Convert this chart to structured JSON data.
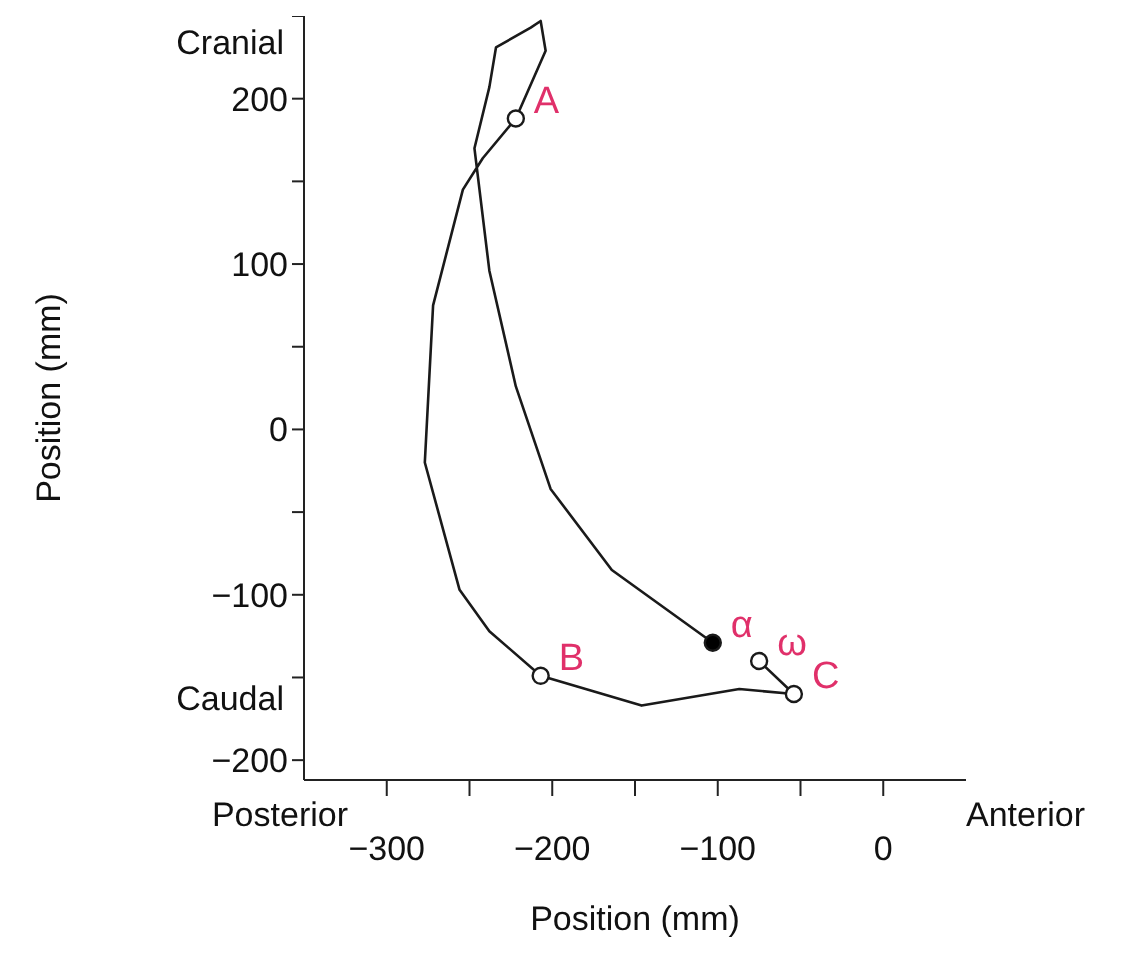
{
  "chart_data": {
    "type": "line",
    "xlabel": "Position (mm)",
    "ylabel": "Position (mm)",
    "xlim": [
      -350,
      50
    ],
    "ylim": [
      -212,
      250
    ],
    "xticks": [
      -300,
      {
        "value": -250,
        "label": null
      },
      -200,
      {
        "value": -150,
        "label": null
      },
      -100,
      {
        "value": -50,
        "label": null
      },
      0
    ],
    "yticks": [
      -200,
      {
        "value": -150,
        "label": null
      },
      -100,
      {
        "value": -50,
        "label": null
      },
      0,
      {
        "value": 50,
        "label": null
      },
      100,
      {
        "value": 150,
        "label": null
      },
      200,
      {
        "value": 250,
        "label": null
      }
    ],
    "grid": false,
    "series": [
      {
        "color": "#1a1a1a",
        "marker": "none",
        "x": [
          -103,
          -164,
          -201,
          -222,
          -238,
          -247,
          -238,
          -234,
          -213,
          -207,
          -204,
          -222,
          -242,
          -254,
          -272,
          -277,
          -256,
          -238,
          -207,
          -146,
          -87,
          -54,
          -75
        ],
        "values": [
          -129,
          -85,
          -36,
          26,
          96,
          170,
          207,
          231,
          243,
          247,
          229,
          188,
          164,
          145,
          75,
          -20,
          -97,
          -122,
          -149,
          -167,
          -157,
          -160,
          -140
        ]
      },
      {
        "type": "scatter",
        "color": "#1a1a1a",
        "marker": "circle",
        "x": [
          -222,
          -207,
          -54,
          -75
        ],
        "values": [
          188,
          -149,
          -160,
          -140
        ]
      },
      {
        "type": "scatter",
        "color": "#1a1a1a",
        "colors": [
          "#000000"
        ],
        "marker": "circle",
        "x": [
          -103
        ],
        "values": [
          -129
        ]
      }
    ],
    "annotations": [
      "Cranial",
      "Caudal",
      "Posterior",
      "Anterior",
      {
        "text": "A",
        "x": -222,
        "y": 188
      },
      {
        "text": "B",
        "x": -207,
        "y": -149
      },
      {
        "text": "C",
        "x": -54,
        "y": -160
      },
      {
        "text": "α",
        "x": -103,
        "y": -129
      },
      {
        "text": "ω",
        "x": -75,
        "y": -140
      }
    ]
  }
}
